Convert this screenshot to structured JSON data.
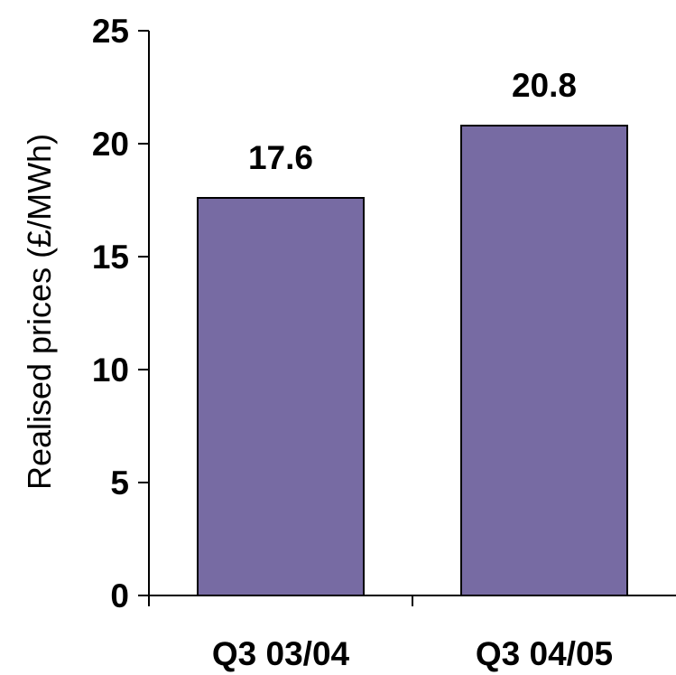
{
  "chart_data": {
    "type": "bar",
    "categories": [
      "Q3 03/04",
      "Q3 04/05"
    ],
    "values": [
      17.6,
      20.8
    ],
    "data_labels": [
      "17.6",
      "20.8"
    ],
    "title": "",
    "xlabel": "",
    "ylabel": "Realised prices (£/MWh)",
    "ylim": [
      0,
      25
    ],
    "yticks": [
      "0",
      "5",
      "10",
      "15",
      "20",
      "25"
    ],
    "grid": false,
    "legend": "none",
    "bar_color": "#776BA3",
    "bar_edge_color": "#000000"
  }
}
